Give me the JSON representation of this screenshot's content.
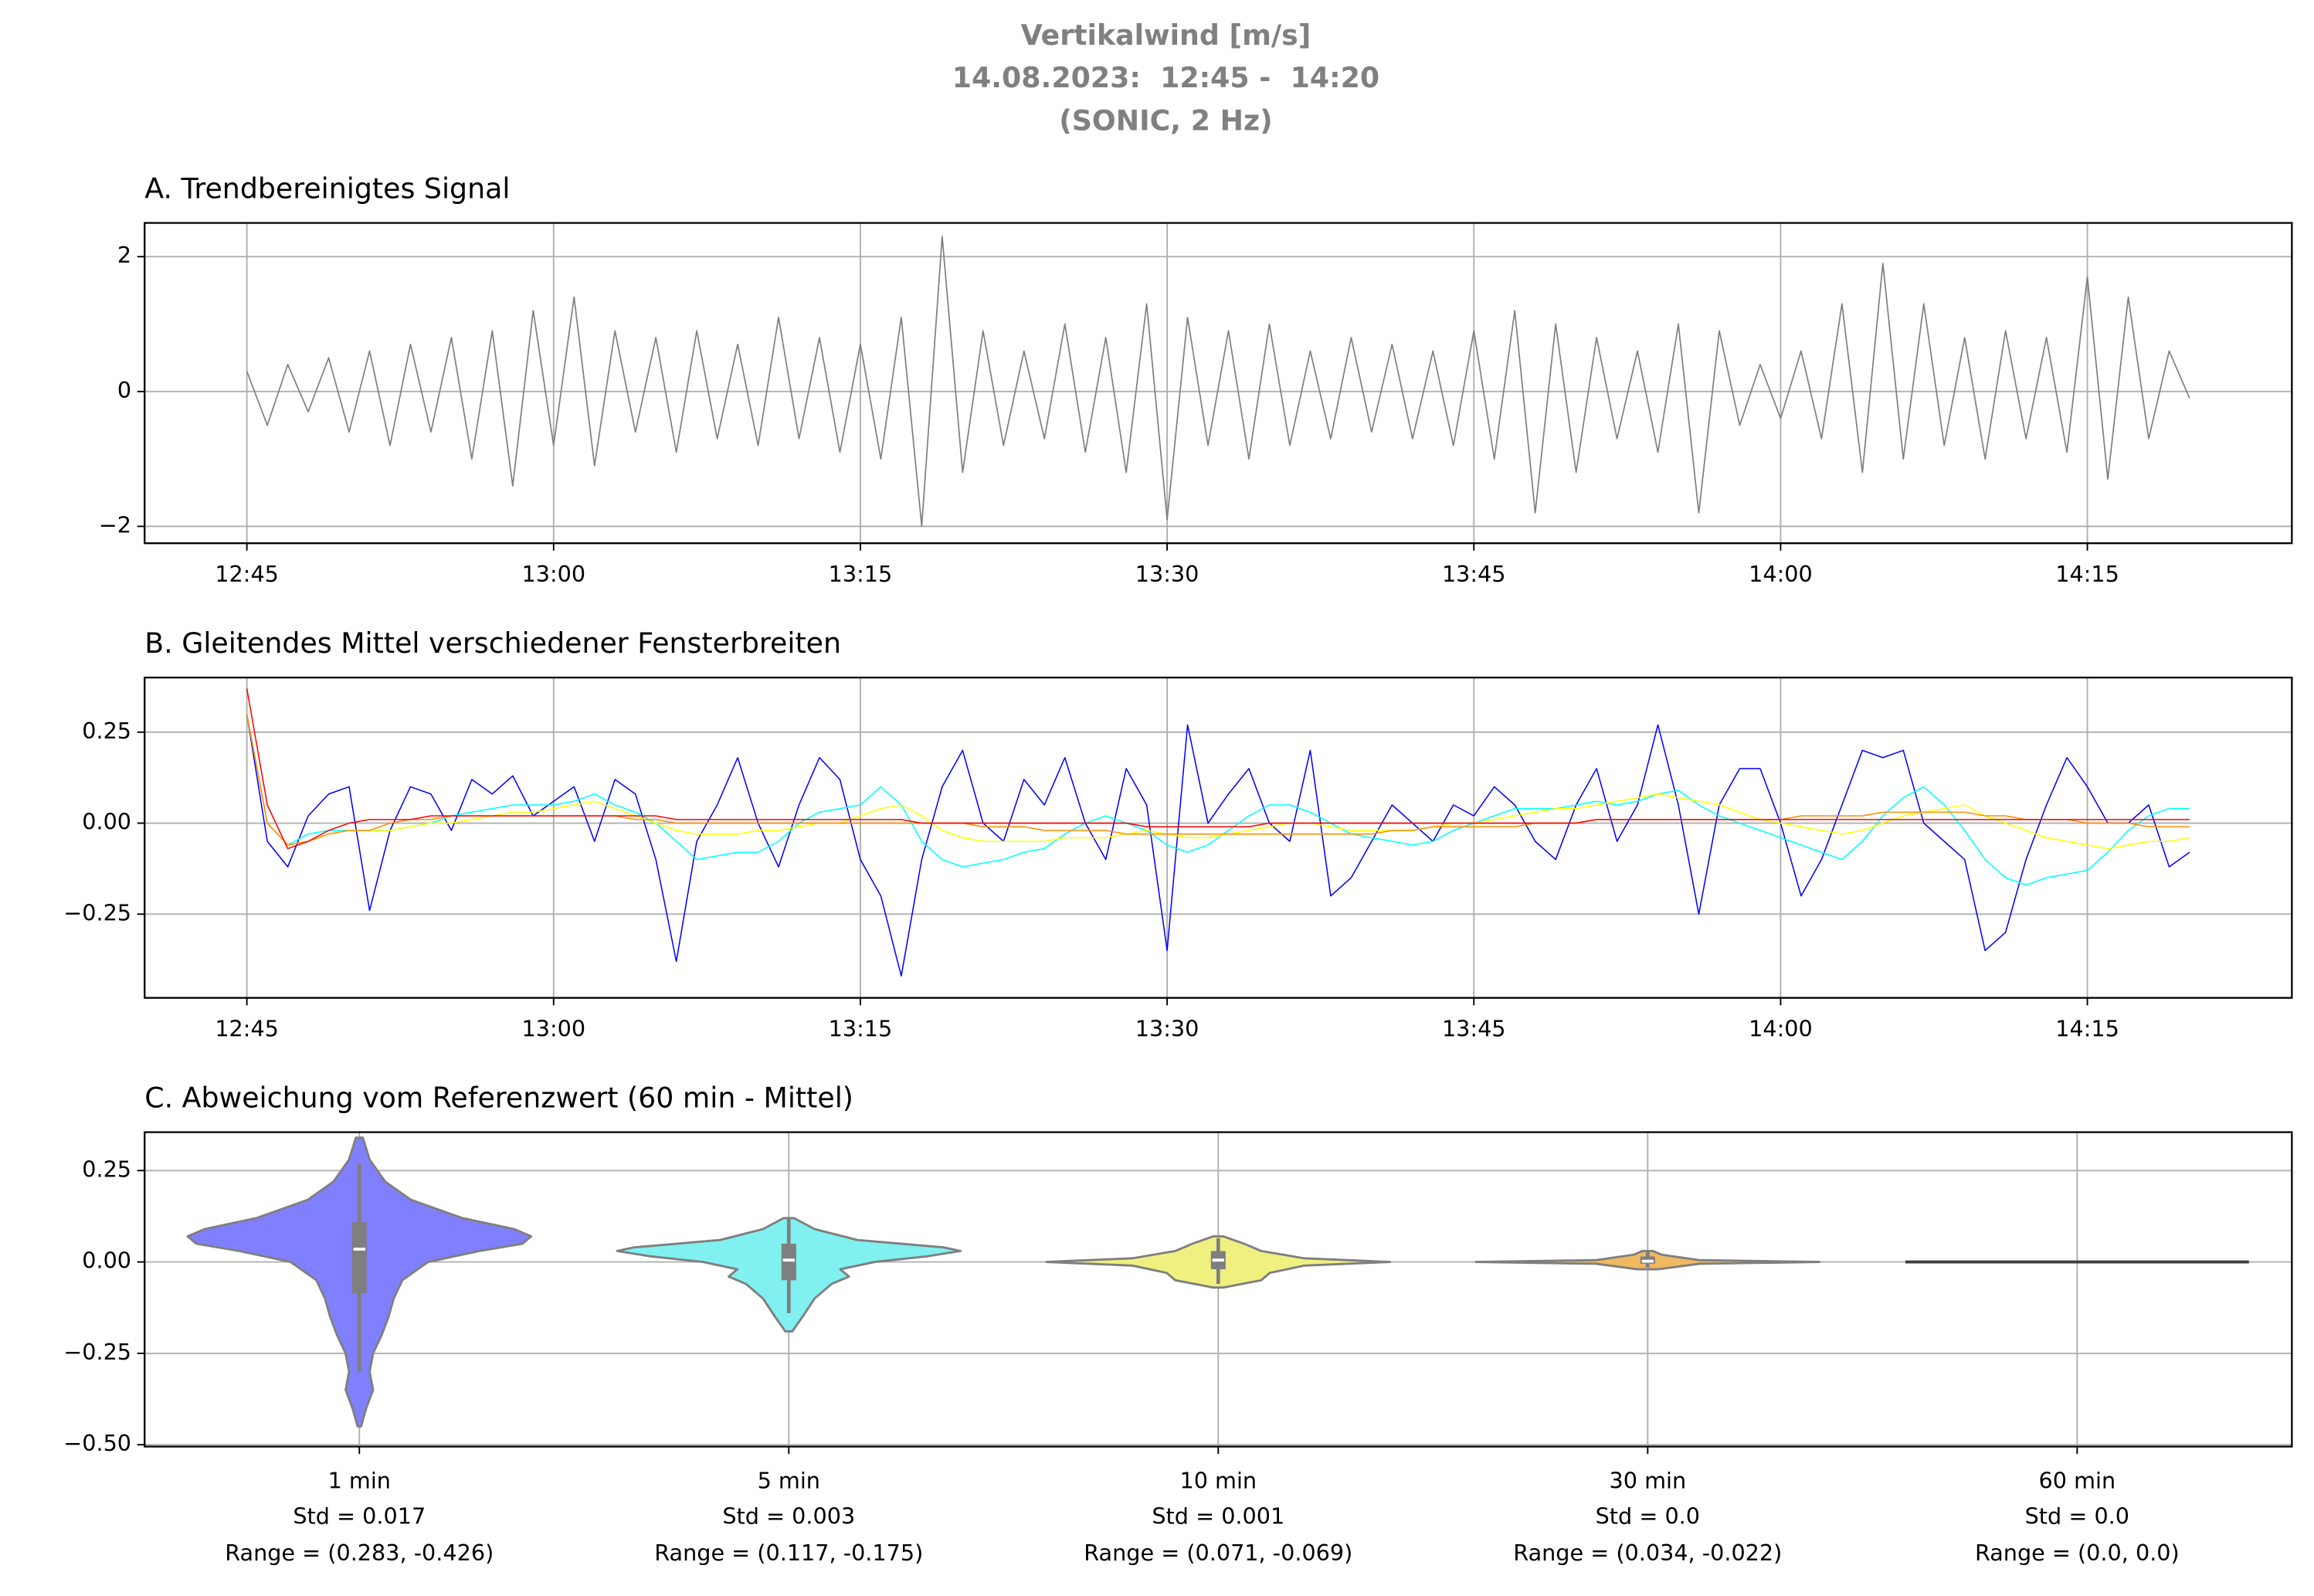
{
  "figure_title": [
    "Vertikalwind [m/s]",
    "14.08.2023:  12:45 -  14:20",
    "(SONIC, 2 Hz)"
  ],
  "chart_data": [
    {
      "type": "line",
      "title": "A. Trendbereinigtes Signal",
      "x": [
        "12:45",
        "12:46",
        "12:47",
        "12:48",
        "12:49",
        "12:50",
        "12:51",
        "12:52",
        "12:53",
        "12:54",
        "12:55",
        "12:56",
        "12:57",
        "12:58",
        "12:59",
        "13:00",
        "13:01",
        "13:02",
        "13:03",
        "13:04",
        "13:05",
        "13:06",
        "13:07",
        "13:08",
        "13:09",
        "13:10",
        "13:11",
        "13:12",
        "13:13",
        "13:14",
        "13:15",
        "13:16",
        "13:17",
        "13:18",
        "13:19",
        "13:20",
        "13:21",
        "13:22",
        "13:23",
        "13:24",
        "13:25",
        "13:26",
        "13:27",
        "13:28",
        "13:29",
        "13:30",
        "13:31",
        "13:32",
        "13:33",
        "13:34",
        "13:35",
        "13:36",
        "13:37",
        "13:38",
        "13:39",
        "13:40",
        "13:41",
        "13:42",
        "13:43",
        "13:44",
        "13:45",
        "13:46",
        "13:47",
        "13:48",
        "13:49",
        "13:50",
        "13:51",
        "13:52",
        "13:53",
        "13:54",
        "13:55",
        "13:56",
        "13:57",
        "13:58",
        "13:59",
        "14:00",
        "14:01",
        "14:02",
        "14:03",
        "14:04",
        "14:05",
        "14:06",
        "14:07",
        "14:08",
        "14:09",
        "14:10",
        "14:11",
        "14:12",
        "14:13",
        "14:14",
        "14:15",
        "14:16",
        "14:17",
        "14:18",
        "14:19",
        "14:20"
      ],
      "series": [
        {
          "color": "#808080",
          "values": [
            0.3,
            -0.5,
            0.4,
            -0.3,
            0.5,
            -0.6,
            0.6,
            -0.8,
            0.7,
            -0.6,
            0.8,
            -1.0,
            0.9,
            -1.4,
            1.2,
            -0.8,
            1.4,
            -1.1,
            0.9,
            -0.6,
            0.8,
            -0.9,
            0.9,
            -0.7,
            0.7,
            -0.8,
            1.1,
            -0.7,
            0.8,
            -0.9,
            0.7,
            -1.0,
            1.1,
            -2.0,
            2.3,
            -1.2,
            0.9,
            -0.8,
            0.6,
            -0.7,
            1.0,
            -0.9,
            0.8,
            -1.2,
            1.3,
            -1.9,
            1.1,
            -0.8,
            0.9,
            -1.0,
            1.0,
            -0.8,
            0.6,
            -0.7,
            0.8,
            -0.6,
            0.7,
            -0.7,
            0.6,
            -0.8,
            0.9,
            -1.0,
            1.2,
            -1.8,
            1.0,
            -1.2,
            0.8,
            -0.7,
            0.6,
            -0.9,
            1.0,
            -1.8,
            0.9,
            -0.5,
            0.4,
            -0.4,
            0.6,
            -0.7,
            1.3,
            -1.2,
            1.9,
            -1.0,
            1.3,
            -0.8,
            0.8,
            -1.0,
            0.9,
            -0.7,
            0.8,
            -0.9,
            1.7,
            -1.3,
            1.4,
            -0.7,
            0.6,
            -0.1
          ]
        }
      ],
      "xlim": [
        "12:40",
        "14:25"
      ],
      "xticks": [
        "12:45",
        "13:00",
        "13:15",
        "13:30",
        "13:45",
        "14:00",
        "14:15"
      ],
      "ylim": [
        -2.25,
        2.5
      ],
      "yticks": [
        {
          "value": -2,
          "label": "−2"
        },
        0,
        2
      ],
      "grid": true
    },
    {
      "type": "line",
      "title": "B. Gleitendes Mittel verschiedener Fensterbreiten",
      "x": [
        "12:45",
        "12:46",
        "12:47",
        "12:48",
        "12:49",
        "12:50",
        "12:51",
        "12:52",
        "12:53",
        "12:54",
        "12:55",
        "12:56",
        "12:57",
        "12:58",
        "12:59",
        "13:00",
        "13:01",
        "13:02",
        "13:03",
        "13:04",
        "13:05",
        "13:06",
        "13:07",
        "13:08",
        "13:09",
        "13:10",
        "13:11",
        "13:12",
        "13:13",
        "13:14",
        "13:15",
        "13:16",
        "13:17",
        "13:18",
        "13:19",
        "13:20",
        "13:21",
        "13:22",
        "13:23",
        "13:24",
        "13:25",
        "13:26",
        "13:27",
        "13:28",
        "13:29",
        "13:30",
        "13:31",
        "13:32",
        "13:33",
        "13:34",
        "13:35",
        "13:36",
        "13:37",
        "13:38",
        "13:39",
        "13:40",
        "13:41",
        "13:42",
        "13:43",
        "13:44",
        "13:45",
        "13:46",
        "13:47",
        "13:48",
        "13:49",
        "13:50",
        "13:51",
        "13:52",
        "13:53",
        "13:54",
        "13:55",
        "13:56",
        "13:57",
        "13:58",
        "13:59",
        "14:00",
        "14:01",
        "14:02",
        "14:03",
        "14:04",
        "14:05",
        "14:06",
        "14:07",
        "14:08",
        "14:09",
        "14:10",
        "14:11",
        "14:12",
        "14:13",
        "14:14",
        "14:15",
        "14:16",
        "14:17",
        "14:18",
        "14:19",
        "14:20"
      ],
      "series": [
        {
          "color": "#0000ff",
          "values": [
            0.3,
            -0.05,
            -0.12,
            0.02,
            0.08,
            0.1,
            -0.24,
            -0.02,
            0.1,
            0.08,
            -0.02,
            0.12,
            0.08,
            0.13,
            0.02,
            0.06,
            0.1,
            -0.05,
            0.12,
            0.08,
            -0.1,
            -0.38,
            -0.05,
            0.05,
            0.18,
            0.0,
            -0.12,
            0.05,
            0.18,
            0.12,
            -0.1,
            -0.2,
            -0.42,
            -0.1,
            0.1,
            0.2,
            0.0,
            -0.05,
            0.12,
            0.05,
            0.18,
            0.0,
            -0.1,
            0.15,
            0.05,
            -0.35,
            0.27,
            0.0,
            0.08,
            0.15,
            0.0,
            -0.05,
            0.2,
            -0.2,
            -0.15,
            -0.05,
            0.05,
            0.0,
            -0.05,
            0.05,
            0.02,
            0.1,
            0.05,
            -0.05,
            -0.1,
            0.05,
            0.15,
            -0.05,
            0.05,
            0.27,
            0.05,
            -0.25,
            0.05,
            0.15,
            0.15,
            0.0,
            -0.2,
            -0.1,
            0.05,
            0.2,
            0.18,
            0.2,
            0.0,
            -0.05,
            -0.1,
            -0.35,
            -0.3,
            -0.1,
            0.05,
            0.18,
            0.1,
            0.0,
            0.0,
            0.05,
            -0.12,
            -0.08
          ]
        },
        {
          "color": "#00ffff",
          "values": [
            0.3,
            0.0,
            -0.06,
            -0.03,
            -0.02,
            -0.02,
            -0.02,
            -0.02,
            -0.01,
            0.0,
            0.02,
            0.03,
            0.04,
            0.05,
            0.05,
            0.05,
            0.06,
            0.08,
            0.05,
            0.03,
            0.0,
            -0.05,
            -0.1,
            -0.09,
            -0.08,
            -0.08,
            -0.05,
            0.0,
            0.03,
            0.04,
            0.05,
            0.1,
            0.05,
            -0.05,
            -0.1,
            -0.12,
            -0.11,
            -0.1,
            -0.08,
            -0.07,
            -0.03,
            0.0,
            0.02,
            0.0,
            -0.02,
            -0.06,
            -0.08,
            -0.06,
            -0.02,
            0.02,
            0.05,
            0.05,
            0.03,
            0.0,
            -0.03,
            -0.04,
            -0.05,
            -0.06,
            -0.05,
            -0.02,
            0.0,
            0.02,
            0.04,
            0.04,
            0.04,
            0.05,
            0.06,
            0.05,
            0.06,
            0.08,
            0.09,
            0.05,
            0.02,
            0.0,
            -0.02,
            -0.04,
            -0.06,
            -0.08,
            -0.1,
            -0.05,
            0.02,
            0.07,
            0.1,
            0.05,
            -0.02,
            -0.1,
            -0.15,
            -0.17,
            -0.15,
            -0.14,
            -0.13,
            -0.08,
            -0.02,
            0.02,
            0.04,
            0.04
          ]
        },
        {
          "color": "#ffff00",
          "values": [
            0.3,
            0.0,
            -0.06,
            -0.05,
            -0.03,
            -0.02,
            -0.02,
            -0.02,
            -0.01,
            0.0,
            0.0,
            0.01,
            0.02,
            0.03,
            0.03,
            0.04,
            0.05,
            0.06,
            0.04,
            0.02,
            0.0,
            -0.02,
            -0.03,
            -0.03,
            -0.03,
            -0.02,
            -0.02,
            -0.01,
            0.0,
            0.0,
            0.02,
            0.04,
            0.05,
            0.02,
            -0.02,
            -0.04,
            -0.05,
            -0.05,
            -0.05,
            -0.05,
            -0.04,
            -0.04,
            -0.04,
            -0.03,
            -0.02,
            -0.03,
            -0.04,
            -0.04,
            -0.03,
            -0.02,
            -0.01,
            0.0,
            0.0,
            -0.01,
            -0.02,
            -0.02,
            -0.02,
            -0.02,
            -0.01,
            0.0,
            0.0,
            0.01,
            0.02,
            0.03,
            0.04,
            0.04,
            0.05,
            0.06,
            0.07,
            0.08,
            0.07,
            0.06,
            0.05,
            0.03,
            0.01,
            0.0,
            -0.01,
            -0.02,
            -0.03,
            -0.02,
            0.0,
            0.02,
            0.03,
            0.04,
            0.05,
            0.02,
            0.0,
            -0.02,
            -0.04,
            -0.05,
            -0.06,
            -0.07,
            -0.06,
            -0.05,
            -0.05,
            -0.04
          ]
        },
        {
          "color": "#ff8c00",
          "values": [
            0.3,
            0.0,
            -0.06,
            -0.05,
            -0.03,
            -0.02,
            -0.02,
            0.0,
            0.01,
            0.01,
            0.02,
            0.02,
            0.02,
            0.02,
            0.02,
            0.02,
            0.02,
            0.02,
            0.02,
            0.01,
            0.01,
            0.0,
            0.0,
            0.0,
            0.0,
            0.0,
            0.0,
            0.0,
            0.0,
            0.0,
            0.0,
            0.0,
            0.0,
            0.0,
            0.0,
            0.0,
            -0.01,
            -0.01,
            -0.01,
            -0.02,
            -0.02,
            -0.02,
            -0.02,
            -0.03,
            -0.03,
            -0.03,
            -0.03,
            -0.03,
            -0.03,
            -0.03,
            -0.03,
            -0.03,
            -0.03,
            -0.03,
            -0.03,
            -0.03,
            -0.02,
            -0.02,
            -0.01,
            -0.01,
            -0.01,
            -0.01,
            -0.01,
            0.0,
            0.0,
            0.0,
            0.01,
            0.01,
            0.01,
            0.01,
            0.01,
            0.01,
            0.01,
            0.01,
            0.01,
            0.01,
            0.02,
            0.02,
            0.02,
            0.02,
            0.03,
            0.03,
            0.03,
            0.03,
            0.03,
            0.02,
            0.02,
            0.01,
            0.01,
            0.01,
            0.0,
            0.0,
            0.0,
            -0.01,
            -0.01,
            -0.01
          ]
        },
        {
          "color": "#ff0000",
          "values": [
            0.37,
            0.05,
            -0.07,
            -0.05,
            -0.02,
            0.0,
            0.01,
            0.01,
            0.01,
            0.02,
            0.02,
            0.02,
            0.02,
            0.02,
            0.02,
            0.02,
            0.02,
            0.02,
            0.02,
            0.02,
            0.02,
            0.01,
            0.01,
            0.01,
            0.01,
            0.01,
            0.01,
            0.01,
            0.01,
            0.01,
            0.01,
            0.01,
            0.01,
            0.0,
            0.0,
            0.0,
            0.0,
            0.0,
            0.0,
            0.0,
            0.0,
            0.0,
            0.0,
            0.0,
            -0.01,
            -0.01,
            -0.01,
            -0.01,
            -0.01,
            -0.01,
            0.0,
            0.0,
            0.0,
            0.0,
            0.0,
            0.0,
            0.0,
            0.0,
            0.0,
            0.0,
            0.0,
            0.0,
            0.0,
            0.0,
            0.0,
            0.0,
            0.01,
            0.01,
            0.01,
            0.01,
            0.01,
            0.01,
            0.01,
            0.01,
            0.01,
            0.01,
            0.01,
            0.01,
            0.01,
            0.01,
            0.01,
            0.01,
            0.01,
            0.01,
            0.01,
            0.01,
            0.01,
            0.01,
            0.01,
            0.01,
            0.01,
            0.01,
            0.01,
            0.01,
            0.01,
            0.01
          ]
        }
      ],
      "xlim": [
        "12:40",
        "14:25"
      ],
      "xticks": [
        "12:45",
        "13:00",
        "13:15",
        "13:30",
        "13:45",
        "14:00",
        "14:15"
      ],
      "ylim": [
        -0.48,
        0.4
      ],
      "yticks": [
        {
          "value": -0.25,
          "label": "−0.25"
        },
        {
          "value": 0,
          "label": "0.00"
        },
        0.25
      ],
      "grid": true
    },
    {
      "type": "violin",
      "title": "C. Abweichung vom Referenzwert (60 min - Mittel)",
      "categories": [
        "1 min",
        "5 min",
        "10 min",
        "30 min",
        "60 min"
      ],
      "std_labels": [
        "Std = 0.017",
        "Std = 0.003",
        "Std = 0.001",
        "Std = 0.0",
        "Std = 0.0"
      ],
      "range_labels": [
        "Range = (0.283, -0.426)",
        "Range = (0.117, -0.175)",
        "Range = (0.071, -0.069)",
        "Range = (0.034, -0.022)",
        "Range = (0.0, 0.0)"
      ],
      "violins": [
        {
          "color": "#8080ff",
          "kde_y": [
            0.34,
            0.28,
            0.22,
            0.17,
            0.12,
            0.09,
            0.07,
            0.05,
            0.03,
            0.0,
            -0.05,
            -0.1,
            -0.15,
            -0.2,
            -0.25,
            -0.3,
            -0.35,
            -0.4,
            -0.45
          ],
          "kde_width": [
            0.02,
            0.06,
            0.15,
            0.3,
            0.6,
            0.9,
            1.0,
            0.95,
            0.7,
            0.4,
            0.25,
            0.2,
            0.17,
            0.13,
            0.08,
            0.06,
            0.08,
            0.04,
            0.01
          ],
          "whisker_low": -0.3,
          "q1": -0.085,
          "median": 0.035,
          "q3": 0.109,
          "whisker_high": 0.27
        },
        {
          "color": "#80f0f0",
          "kde_y": [
            0.12,
            0.09,
            0.06,
            0.04,
            0.03,
            0.015,
            0.0,
            -0.02,
            -0.04,
            -0.06,
            -0.1,
            -0.15,
            -0.19
          ],
          "kde_width": [
            0.03,
            0.15,
            0.4,
            0.9,
            1.0,
            0.8,
            0.5,
            0.3,
            0.35,
            0.25,
            0.15,
            0.08,
            0.02
          ],
          "whisker_low": -0.14,
          "q1": -0.05,
          "median": 0.005,
          "q3": 0.05,
          "whisker_high": 0.12
        },
        {
          "color": "#f0f080",
          "kde_y": [
            0.07,
            0.05,
            0.03,
            0.01,
            0.0,
            -0.01,
            -0.03,
            -0.05,
            -0.07
          ],
          "kde_width": [
            0.03,
            0.15,
            0.25,
            0.5,
            1.0,
            0.5,
            0.3,
            0.25,
            0.03
          ],
          "whisker_low": -0.06,
          "q1": -0.02,
          "median": 0.005,
          "q3": 0.03,
          "whisker_high": 0.065
        },
        {
          "color": "#f0b860",
          "kde_y": [
            0.03,
            0.02,
            0.005,
            0.0,
            -0.005,
            -0.02
          ],
          "kde_width": [
            0.03,
            0.08,
            0.3,
            1.0,
            0.3,
            0.06
          ],
          "whisker_low": -0.015,
          "q1": -0.005,
          "median": 0.002,
          "q3": 0.015,
          "whisker_high": 0.028
        },
        {
          "color": "#3f3f3f",
          "kde_y": [
            0.0
          ],
          "kde_width": [
            1.0
          ]
        }
      ],
      "ylim": [
        -0.505,
        0.355
      ],
      "yticks": [
        {
          "value": -0.5,
          "label": "−0.50"
        },
        {
          "value": -0.25,
          "label": "−0.25"
        },
        {
          "value": 0,
          "label": "0.00"
        },
        0.25
      ],
      "grid": true
    }
  ]
}
